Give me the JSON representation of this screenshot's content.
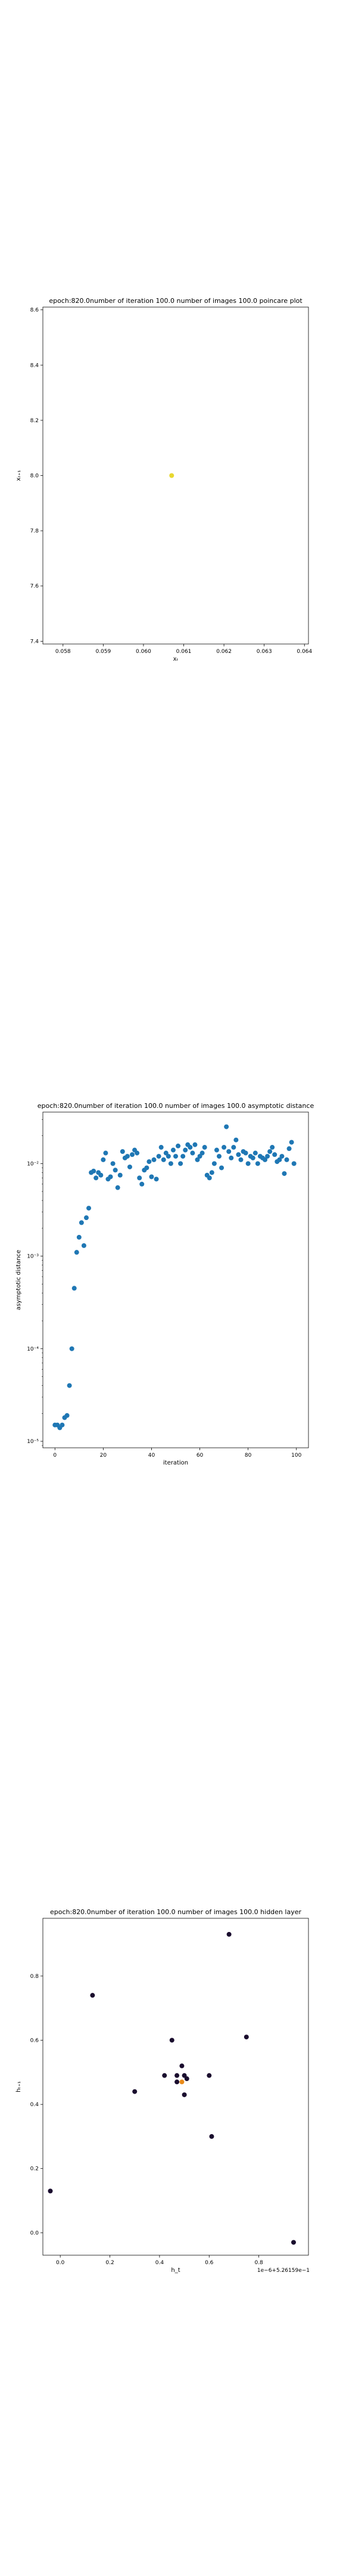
{
  "chart_data": [
    {
      "type": "scatter",
      "title": "epoch:820.0number of iteration 100.0 number of images 100.0 poincare plot",
      "xlabel": "xₜ",
      "ylabel": "xₜ₊₁",
      "xlim": [
        0.0575,
        0.0641
      ],
      "ylim": [
        7.39,
        8.61
      ],
      "xticks": [
        0.058,
        0.059,
        0.06,
        0.061,
        0.062,
        0.063,
        0.064
      ],
      "xtick_labels": [
        "0.058",
        "0.059",
        "0.060",
        "0.061",
        "0.062",
        "0.063",
        "0.064"
      ],
      "yticks": [
        7.4,
        7.6,
        7.8,
        8.0,
        8.2,
        8.4,
        8.6
      ],
      "ytick_labels": [
        "7.4",
        "7.6",
        "7.8",
        "8.0",
        "8.2",
        "8.4",
        "8.6"
      ],
      "series": [
        {
          "color": "#e8d830",
          "x": [
            0.0607
          ],
          "y": [
            8.0
          ]
        }
      ],
      "grid": false
    },
    {
      "type": "scatter",
      "title": "epoch:820.0number of iteration 100.0  number of images 100.0 asymptotic distance",
      "xlabel": "iteration",
      "ylabel": "asymptotic distance",
      "y_scale": "log",
      "xlim": [
        -5,
        105
      ],
      "xticks": [
        0,
        20,
        40,
        60,
        80,
        100
      ],
      "xtick_labels": [
        "0",
        "20",
        "40",
        "60",
        "80",
        "100"
      ],
      "ytick_labels": [
        "10⁻⁵",
        "10⁻⁴",
        "10⁻³",
        "10⁻²"
      ],
      "series": [
        {
          "color": "#1f77b4",
          "x": [
            0,
            1,
            2,
            3,
            4,
            5,
            6,
            7,
            8,
            9,
            10,
            11,
            12,
            13,
            14,
            15,
            16,
            17,
            18,
            19,
            20,
            21,
            22,
            23,
            24,
            25,
            26,
            27,
            28,
            29,
            30,
            31,
            32,
            33,
            34,
            35,
            36,
            37,
            38,
            39,
            40,
            41,
            42,
            43,
            44,
            45,
            46,
            47,
            48,
            49,
            50,
            51,
            52,
            53,
            54,
            55,
            56,
            57,
            58,
            59,
            60,
            61,
            62,
            63,
            64,
            65,
            66,
            67,
            68,
            69,
            70,
            71,
            72,
            73,
            74,
            75,
            76,
            77,
            78,
            79,
            80,
            81,
            82,
            83,
            84,
            85,
            86,
            87,
            88,
            89,
            90,
            91,
            92,
            93,
            94,
            95,
            96,
            97,
            98,
            99
          ],
          "y": [
            1.5e-05,
            1.5e-05,
            1.4e-05,
            1.5e-05,
            1.8e-05,
            1.9e-05,
            4e-05,
            0.0001,
            0.00045,
            0.0011,
            0.0016,
            0.0023,
            0.0013,
            0.0026,
            0.0033,
            0.008,
            0.0083,
            0.007,
            0.008,
            0.0075,
            0.011,
            0.013,
            0.0068,
            0.0072,
            0.01,
            0.0085,
            0.0055,
            0.0075,
            0.0135,
            0.0115,
            0.012,
            0.0092,
            0.0125,
            0.014,
            0.013,
            0.007,
            0.006,
            0.0085,
            0.009,
            0.0105,
            0.0072,
            0.011,
            0.0068,
            0.012,
            0.015,
            0.011,
            0.013,
            0.012,
            0.01,
            0.014,
            0.012,
            0.0155,
            0.01,
            0.012,
            0.014,
            0.016,
            0.015,
            0.013,
            0.016,
            0.011,
            0.012,
            0.013,
            0.015,
            0.0075,
            0.007,
            0.008,
            0.01,
            0.014,
            0.012,
            0.009,
            0.015,
            0.025,
            0.0135,
            0.0115,
            0.015,
            0.018,
            0.0125,
            0.011,
            0.0135,
            0.013,
            0.01,
            0.012,
            0.0115,
            0.013,
            0.01,
            0.012,
            0.0115,
            0.011,
            0.012,
            0.0135,
            0.015,
            0.0125,
            0.0105,
            0.011,
            0.012,
            0.0078,
            0.011,
            0.0145,
            0.017,
            0.01
          ]
        }
      ],
      "grid": false
    },
    {
      "type": "scatter",
      "title": "epoch:820.0number of iteration 100.0  number of images 100.0 hidden layer",
      "xlabel": "h_t",
      "ylabel": "hₜ₊₁",
      "offset_text": "1e−6+5.26159e−1",
      "xlim": [
        -0.07,
        1.0
      ],
      "ylim": [
        -0.07,
        0.98
      ],
      "xticks": [
        0.0,
        0.2,
        0.4,
        0.6,
        0.8
      ],
      "xtick_labels": [
        "0.0",
        "0.2",
        "0.4",
        "0.6",
        "0.8"
      ],
      "yticks": [
        0.0,
        0.2,
        0.4,
        0.6,
        0.8
      ],
      "ytick_labels": [
        "0.0",
        "0.2",
        "0.4",
        "0.6",
        "0.8"
      ],
      "series": [
        {
          "color": "#1a0d2e",
          "x": [
            -0.04,
            0.13,
            0.3,
            0.42,
            0.45,
            0.47,
            0.49,
            0.5,
            0.47,
            0.51,
            0.5,
            0.6,
            0.61,
            0.68,
            0.75,
            0.94
          ],
          "y": [
            0.13,
            0.74,
            0.44,
            0.49,
            0.6,
            0.49,
            0.52,
            0.49,
            0.47,
            0.48,
            0.43,
            0.49,
            0.3,
            0.93,
            0.61,
            -0.03
          ]
        },
        {
          "color": "#e88a1a",
          "x": [
            0.49
          ],
          "y": [
            0.47
          ]
        }
      ],
      "grid": false
    }
  ]
}
